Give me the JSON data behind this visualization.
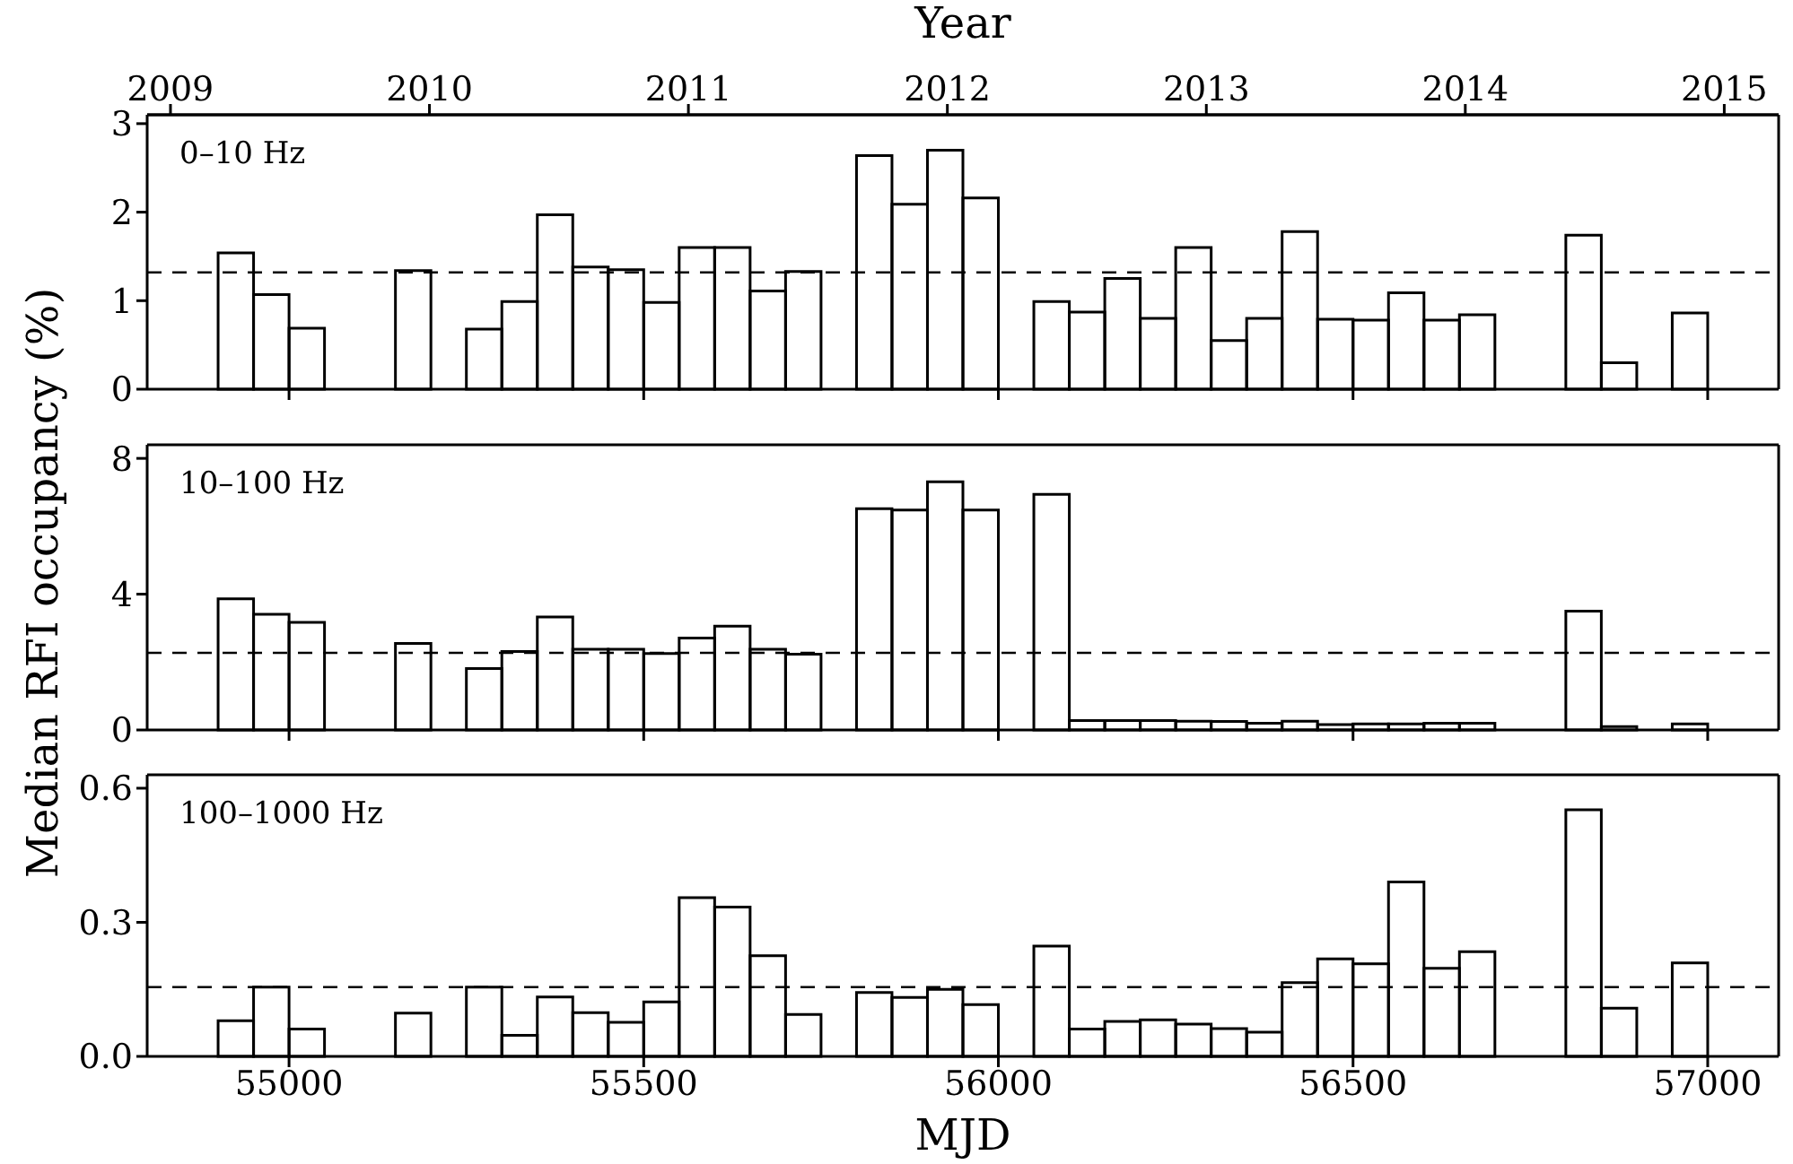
{
  "chart_data": [
    {
      "type": "histogram",
      "x2label": "Year",
      "annotations": [
        "0–10 Hz"
      ],
      "color": "#000000",
      "bins": [
        54900,
        54950,
        55000,
        55050,
        55100,
        55150,
        55200,
        55250,
        55300,
        55350,
        55400,
        55450,
        55500,
        55550,
        55600,
        55650,
        55700,
        55750,
        55800,
        55850,
        55900,
        55950,
        56000,
        56050,
        56100,
        56150,
        56200,
        56250,
        56300,
        56350,
        56400,
        56450,
        56500,
        56550,
        56600,
        56650,
        56700,
        56750,
        56800,
        56850,
        56900,
        56950,
        57000
      ],
      "values": [
        1.54,
        1.07,
        0.69,
        null,
        null,
        1.34,
        null,
        0.68,
        0.99,
        1.97,
        1.38,
        1.35,
        0.98,
        1.6,
        1.6,
        1.11,
        1.33,
        null,
        2.64,
        2.09,
        2.7,
        2.16,
        null,
        0.99,
        0.87,
        1.25,
        0.8,
        1.6,
        0.55,
        0.8,
        1.78,
        0.79,
        0.78,
        1.09,
        0.78,
        0.84,
        null,
        null,
        1.74,
        0.3,
        null,
        0.86
      ],
      "xlim": [
        54800,
        57100
      ],
      "xticks": [
        55000,
        55500,
        56000,
        56500,
        57000
      ],
      "x2lim": [
        2008.91,
        2015.21
      ],
      "x2ticks": [
        2009,
        2010,
        2011,
        2012,
        2013,
        2014,
        2015
      ],
      "ylim": [
        0,
        3.1
      ],
      "yticks": [
        0,
        1,
        2,
        3
      ],
      "tick_labels": "y",
      "ref_lines": [
        {
          "axis": "y",
          "value": 1.32,
          "line_style": "dashed",
          "color": "#000000"
        }
      ]
    },
    {
      "type": "histogram",
      "ylabel": "Median RFI occupancy (%)",
      "annotations": [
        "10–100 Hz"
      ],
      "color": "#000000",
      "bins": [
        54900,
        54950,
        55000,
        55050,
        55100,
        55150,
        55200,
        55250,
        55300,
        55350,
        55400,
        55450,
        55500,
        55550,
        55600,
        55650,
        55700,
        55750,
        55800,
        55850,
        55900,
        55950,
        56000,
        56050,
        56100,
        56150,
        56200,
        56250,
        56300,
        56350,
        56400,
        56450,
        56500,
        56550,
        56600,
        56650,
        56700,
        56750,
        56800,
        56850,
        56900,
        56950,
        57000
      ],
      "values": [
        3.86,
        3.41,
        3.17,
        null,
        null,
        2.55,
        null,
        1.81,
        2.31,
        3.33,
        2.38,
        2.38,
        2.25,
        2.71,
        3.06,
        2.38,
        2.23,
        null,
        6.52,
        6.48,
        7.31,
        6.48,
        null,
        6.94,
        0.28,
        0.28,
        0.28,
        0.26,
        0.25,
        0.2,
        0.26,
        0.16,
        0.18,
        0.18,
        0.2,
        0.2,
        null,
        null,
        3.5,
        0.1,
        null,
        0.18
      ],
      "xlim": [
        54800,
        57100
      ],
      "xticks": [
        55000,
        55500,
        56000,
        56500,
        57000
      ],
      "ylim": [
        0,
        8.4
      ],
      "yticks": [
        0,
        4,
        8
      ],
      "tick_labels": "y",
      "ref_lines": [
        {
          "axis": "y",
          "value": 2.27,
          "line_style": "dashed",
          "color": "#000000"
        }
      ]
    },
    {
      "type": "histogram",
      "xlabel": "MJD",
      "annotations": [
        "100–1000 Hz"
      ],
      "color": "#000000",
      "bins": [
        54900,
        54950,
        55000,
        55050,
        55100,
        55150,
        55200,
        55250,
        55300,
        55350,
        55400,
        55450,
        55500,
        55550,
        55600,
        55650,
        55700,
        55750,
        55800,
        55850,
        55900,
        55950,
        56000,
        56050,
        56100,
        56150,
        56200,
        56250,
        56300,
        56350,
        56400,
        56450,
        56500,
        56550,
        56600,
        56650,
        56700,
        56750,
        56800,
        56850,
        56900,
        56950,
        57000
      ],
      "values": [
        0.08,
        0.155,
        0.061,
        null,
        null,
        0.097,
        null,
        0.155,
        0.047,
        0.133,
        0.098,
        0.076,
        0.122,
        0.355,
        0.334,
        0.225,
        0.094,
        null,
        0.143,
        0.132,
        0.15,
        0.116,
        null,
        0.247,
        0.061,
        0.078,
        0.082,
        0.072,
        0.062,
        0.054,
        0.165,
        0.218,
        0.207,
        0.39,
        0.197,
        0.234,
        null,
        null,
        0.552,
        0.108,
        null,
        0.209
      ],
      "xlim": [
        54800,
        57100
      ],
      "xticks": [
        55000,
        55500,
        56000,
        56500,
        57000
      ],
      "ylim": [
        0,
        0.63
      ],
      "yticks": [
        {
          "value": 0,
          "label": "0.0"
        },
        {
          "value": 0.3,
          "label": "0.3"
        },
        {
          "value": 0.6,
          "label": "0.6"
        }
      ],
      "ref_lines": [
        {
          "axis": "y",
          "value": 0.155,
          "line_style": "dashed",
          "color": "#000000"
        }
      ]
    }
  ]
}
